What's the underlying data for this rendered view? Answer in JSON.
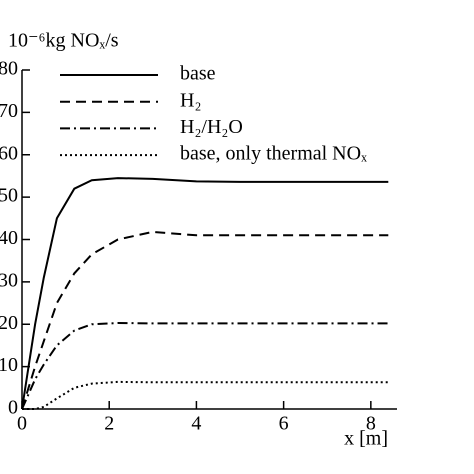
{
  "chart_data": {
    "type": "line",
    "y_label": "10⁻⁶kg NOₓ/s",
    "x_label": "x [m]",
    "x": [
      0,
      0.3,
      0.5,
      0.8,
      1.2,
      1.6,
      2.2,
      3,
      4,
      5,
      6,
      7,
      8.4
    ],
    "series": [
      {
        "name": "base",
        "color": "#000000",
        "dash": "solid",
        "values": [
          0,
          20,
          31,
          45,
          52,
          54,
          54.5,
          54.3,
          53.7,
          53.6,
          53.6,
          53.6,
          53.6
        ]
      },
      {
        "name": "H₂",
        "color": "#000000",
        "dash": "dashed",
        "values": [
          0,
          10,
          16,
          25,
          32,
          36.5,
          40,
          41.8,
          41,
          41,
          41,
          41,
          41
        ]
      },
      {
        "name": "H₂/H₂O",
        "color": "#000000",
        "dash": "dashdot",
        "values": [
          0,
          7,
          10.5,
          15,
          18.5,
          20,
          20.3,
          20.2,
          20.2,
          20.2,
          20.2,
          20.2,
          20.2
        ]
      },
      {
        "name": "base, only thermal NOₓ",
        "color": "#000000",
        "dash": "dotted",
        "values": [
          0,
          0,
          0.5,
          2.5,
          5,
          6,
          6.4,
          6.3,
          6.3,
          6.3,
          6.3,
          6.3,
          6.3
        ]
      }
    ],
    "xlim": [
      0,
      8.6
    ],
    "xticks": [
      0,
      2,
      4,
      6,
      8
    ],
    "ylim": [
      0,
      80
    ],
    "yticks": [
      0,
      10,
      20,
      30,
      40,
      50,
      60,
      70,
      80
    ],
    "grid": false,
    "legend": "upper left"
  }
}
